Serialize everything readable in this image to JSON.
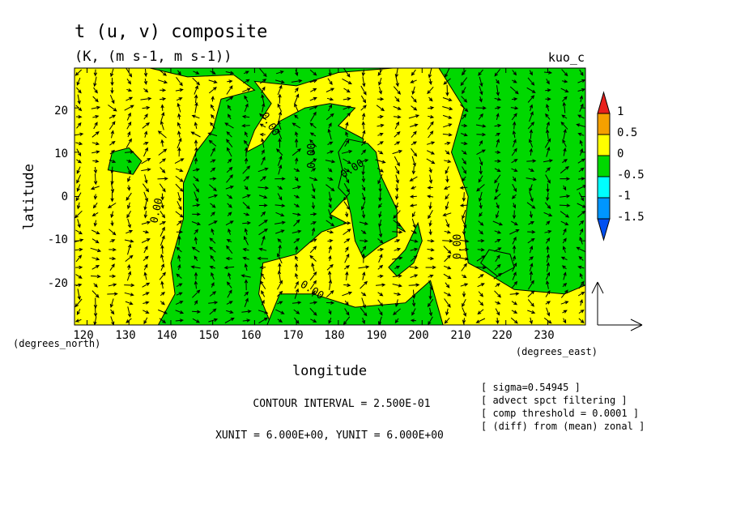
{
  "chart_data": {
    "type": "heatmap",
    "title": "t (u, v) composite",
    "subtitle": "(K, (m s-1, m s-1))",
    "label_right": "kuo_c",
    "xlabel": "longitude",
    "ylabel": "latitude",
    "x_units": "(degrees_east)",
    "y_units": "(degrees_north)",
    "xlim": [
      117,
      239
    ],
    "ylim": [
      -29,
      29
    ],
    "x_ticks": [
      120,
      130,
      140,
      150,
      160,
      170,
      180,
      190,
      200,
      210,
      220,
      230
    ],
    "y_ticks": [
      -20,
      -10,
      0,
      10,
      20
    ],
    "colorbar": {
      "levels": [
        1,
        0.5,
        0,
        -0.5,
        -1,
        -1.5
      ],
      "colors": [
        "#e8201c",
        "#f5a000",
        "#ffff00",
        "#00d800",
        "#00ffff",
        "#0096ff",
        "#0050f0"
      ]
    },
    "contour_labels": [
      "0.00",
      "0.00",
      "0.00",
      "0.00",
      "0.00",
      "0.00",
      "0.00"
    ],
    "contour_interval": "CONTOUR INTERVAL = 2.500E-01",
    "units_note": "XUNIT = 6.000E+00, YUNIT = 6.000E+00",
    "notes": [
      "[ sigma=0.54945 ]",
      "[ advect spct filtering ]",
      "[ comp threshold = 0.0001 ]",
      "[ (diff) from (mean) zonal ]"
    ],
    "regions": [
      {
        "fill": "#00d800",
        "points": [
          [
            129,
            29
          ],
          [
            135,
            29
          ],
          [
            144,
            27
          ],
          [
            155,
            27.5
          ],
          [
            160,
            24
          ],
          [
            152,
            22
          ],
          [
            150,
            15
          ],
          [
            146,
            10
          ],
          [
            143,
            3
          ],
          [
            143,
            -5
          ],
          [
            140,
            -15
          ],
          [
            141,
            -22
          ],
          [
            137,
            -29
          ],
          [
            164,
            -29
          ],
          [
            161,
            -22
          ],
          [
            162,
            -15
          ],
          [
            170,
            -13
          ],
          [
            176,
            -8
          ],
          [
            182,
            -6
          ],
          [
            178,
            -4
          ],
          [
            182,
            0
          ],
          [
            190,
            -5
          ],
          [
            196,
            -8
          ],
          [
            192,
            -3
          ],
          [
            188,
            0
          ],
          [
            184,
            5
          ],
          [
            186,
            13
          ],
          [
            180,
            16
          ],
          [
            184,
            20
          ],
          [
            178,
            21
          ],
          [
            172,
            20
          ],
          [
            166,
            17
          ],
          [
            162,
            12
          ],
          [
            158,
            10
          ],
          [
            160,
            15
          ],
          [
            164,
            21
          ],
          [
            160,
            26
          ],
          [
            170,
            25
          ],
          [
            180,
            28
          ],
          [
            193,
            29
          ]
        ]
      },
      {
        "fill": "#00d800",
        "points": [
          [
            193,
            29
          ],
          [
            204,
            29
          ],
          [
            210,
            20
          ],
          [
            207,
            10
          ],
          [
            211,
            0
          ],
          [
            210,
            -8
          ],
          [
            211,
            -15
          ],
          [
            215,
            -17
          ],
          [
            222,
            -21
          ],
          [
            234,
            -22
          ],
          [
            239,
            -20
          ],
          [
            239,
            29
          ]
        ]
      },
      {
        "fill": "#00d800",
        "points": [
          [
            163,
            -29
          ],
          [
            166,
            -22
          ],
          [
            174,
            -22
          ],
          [
            184,
            -25
          ],
          [
            196,
            -24
          ],
          [
            202,
            -19
          ],
          [
            205,
            -29
          ]
        ]
      },
      {
        "fill": "#00d800",
        "points": [
          [
            187,
            12
          ],
          [
            189,
            10
          ],
          [
            190,
            5
          ],
          [
            192,
            1
          ],
          [
            194,
            -3
          ],
          [
            194,
            -9
          ],
          [
            190,
            -11
          ],
          [
            186,
            -14
          ],
          [
            184,
            -10
          ],
          [
            183,
            -4
          ],
          [
            182,
            0
          ],
          [
            180,
            2
          ],
          [
            181,
            6
          ],
          [
            180,
            10
          ],
          [
            182,
            13
          ]
        ]
      },
      {
        "fill": "#00d800",
        "points": [
          [
            192,
            -16
          ],
          [
            196,
            -12
          ],
          [
            199,
            -6
          ],
          [
            200,
            -10
          ],
          [
            198,
            -15
          ],
          [
            194,
            -18
          ]
        ]
      },
      {
        "fill": "#00d800",
        "points": [
          [
            125,
            6
          ],
          [
            131,
            5
          ],
          [
            133,
            8
          ],
          [
            130,
            11
          ],
          [
            126,
            10
          ]
        ]
      },
      {
        "fill": "#00d800",
        "points": [
          [
            216,
            -12
          ],
          [
            221,
            -13
          ],
          [
            222,
            -16
          ],
          [
            218,
            -18
          ],
          [
            214,
            -15
          ]
        ]
      }
    ]
  }
}
